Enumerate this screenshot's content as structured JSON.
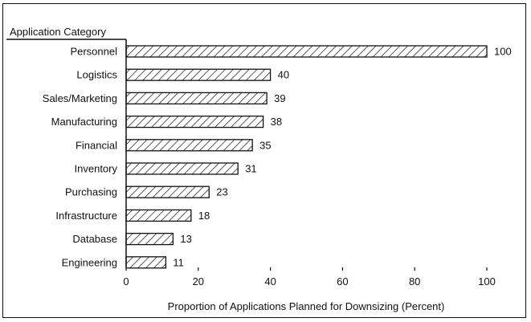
{
  "chart_data": {
    "type": "bar",
    "orientation": "horizontal",
    "category_axis_title": "Application Category",
    "xlabel": "Proportion of Applications Planned for Downsizing (Percent)",
    "categories": [
      "Personnel",
      "Logistics",
      "Sales/Marketing",
      "Manufacturing",
      "Financial",
      "Inventory",
      "Purchasing",
      "Infrastructure",
      "Database",
      "Engineering"
    ],
    "values": [
      100,
      40,
      39,
      38,
      35,
      31,
      23,
      18,
      13,
      11
    ],
    "value_labels": [
      "100",
      "40",
      "39",
      "38",
      "35",
      "31",
      "23",
      "18",
      "13",
      "11"
    ],
    "xlim": [
      0,
      100
    ],
    "x_ticks": [
      "0",
      "20",
      "40",
      "60",
      "80",
      "100"
    ],
    "fill_pattern": "diagonal-hatch",
    "grid": false
  }
}
